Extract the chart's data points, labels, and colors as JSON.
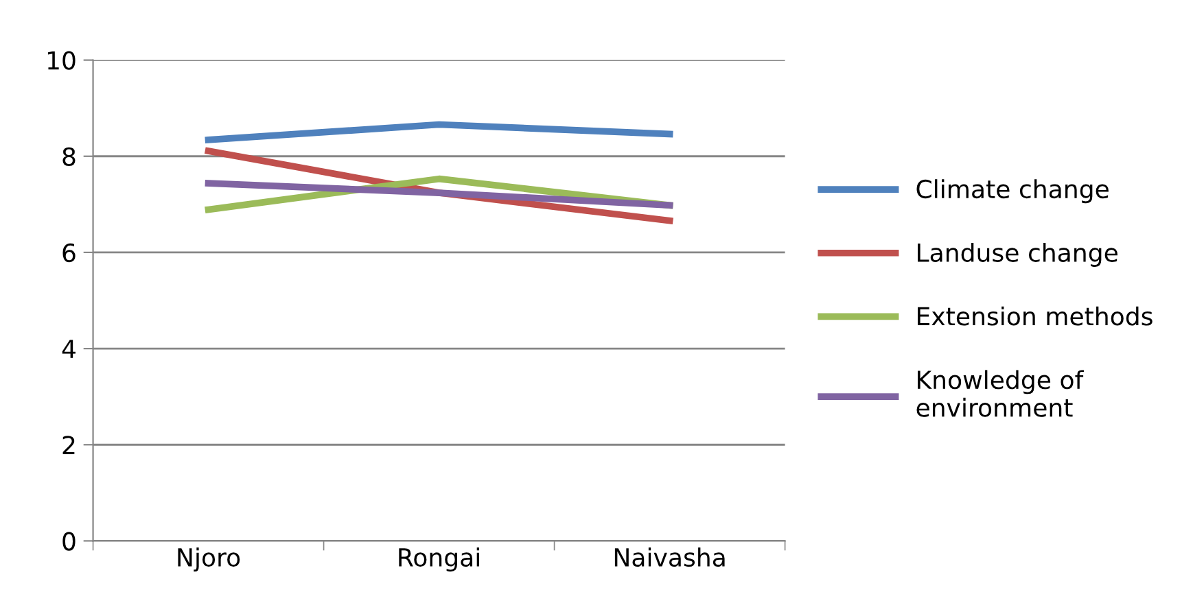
{
  "chart_data": {
    "type": "line",
    "categories": [
      "Njoro",
      "Rongai",
      "Naivasha"
    ],
    "series": [
      {
        "name": "Climate change",
        "color": "#4f81bd",
        "values": [
          8.34,
          8.66,
          8.46
        ]
      },
      {
        "name": "Landuse change",
        "color": "#c0504d",
        "values": [
          8.11,
          7.24,
          6.66
        ]
      },
      {
        "name": "Extension methods",
        "color": "#9bbb59",
        "values": [
          6.89,
          7.53,
          6.98
        ]
      },
      {
        "name": "Knowledge of environment",
        "color": "#8064a2",
        "values": [
          7.44,
          7.24,
          6.98
        ]
      }
    ],
    "ylim": [
      0,
      10
    ],
    "yticks": [
      0,
      2,
      4,
      6,
      8,
      10
    ],
    "grid": "y",
    "legend": "right",
    "marker": "none",
    "line_style": "solid"
  }
}
